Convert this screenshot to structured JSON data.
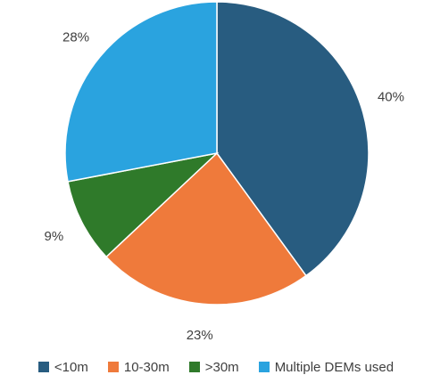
{
  "chart_data": {
    "type": "pie",
    "categories": [
      "<10m",
      "10-30m",
      ">30m",
      "Multiple DEMs used"
    ],
    "values": [
      40,
      23,
      9,
      28
    ],
    "value_labels": [
      "40%",
      "23%",
      "9%",
      "28%"
    ],
    "colors": [
      "#285c80",
      "#ef7a3b",
      "#2f7a2a",
      "#2aa3df"
    ],
    "start_angle_deg": 0,
    "direction": "clockwise",
    "legend_position": "bottom"
  }
}
